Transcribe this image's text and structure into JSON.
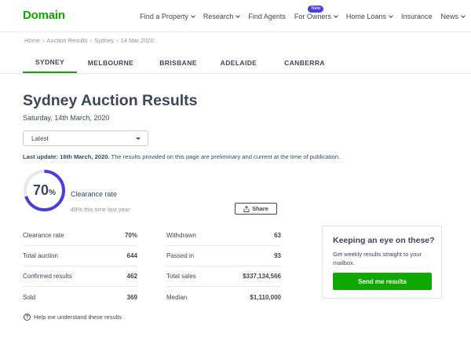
{
  "header": {
    "logo": "Domain",
    "nav": [
      {
        "label": "Find a Property",
        "dropdown": true
      },
      {
        "label": "Research",
        "dropdown": true
      },
      {
        "label": "Find Agents",
        "dropdown": false
      },
      {
        "label": "For Owners",
        "dropdown": true,
        "badge": "New"
      },
      {
        "label": "Home Loans",
        "dropdown": true
      },
      {
        "label": "Insurance",
        "dropdown": false
      },
      {
        "label": "News",
        "dropdown": true
      }
    ]
  },
  "breadcrumb": [
    "Home",
    "Auction Results",
    "Sydney",
    "14 Mar 2020"
  ],
  "tabs": [
    {
      "label": "SYDNEY",
      "active": true
    },
    {
      "label": "MELBOURNE",
      "active": false
    },
    {
      "label": "BRISBANE",
      "active": false
    },
    {
      "label": "ADELAIDE",
      "active": false
    },
    {
      "label": "CANBERRA",
      "active": false
    }
  ],
  "page": {
    "title": "Sydney Auction Results",
    "date": "Saturday, 14th March, 2020",
    "select_value": "Latest",
    "update_bold": "Last update: 16th March, 2020.",
    "update_text": " The results provided on this page are preliminary and current at the time of publication."
  },
  "clearance": {
    "value": "70",
    "unit": "%",
    "fraction": 0.7,
    "label": "Clearance rate",
    "last_year": "49% this time last year",
    "ring_color": "#4b3fd8",
    "share_label": "Share"
  },
  "stats_left": [
    {
      "label": "Clearance rate",
      "value": "70%"
    },
    {
      "label": "Total auction",
      "value": "644"
    },
    {
      "label": "Confirmed results",
      "value": "462"
    },
    {
      "label": "Sold",
      "value": "369"
    }
  ],
  "stats_right": [
    {
      "label": "Withdrawn",
      "value": "63"
    },
    {
      "label": "Passed in",
      "value": "93"
    },
    {
      "label": "Total sales",
      "value": "$337,134,566"
    },
    {
      "label": "Median",
      "value": "$1,110,000"
    }
  ],
  "card": {
    "title": "Keeping an eye on these?",
    "text": "Get weekly results straight to your mailbox.",
    "button": "Send me results"
  },
  "help": {
    "label": "Help me understand these results",
    "icon": "question-icon"
  },
  "colors": {
    "brand": "#0ea800",
    "text": "#3c475b",
    "accent": "#4b3fd8"
  }
}
